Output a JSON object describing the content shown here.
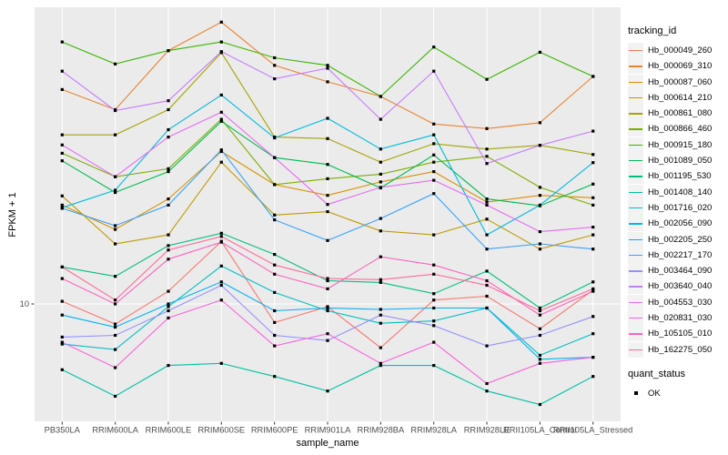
{
  "chart_data": {
    "type": "line",
    "title": "",
    "xlabel": "sample_name",
    "ylabel": "FPKM + 1",
    "y_scale": "log10",
    "y_ticks": [
      {
        "value": 10,
        "label": "10"
      }
    ],
    "grid": true,
    "legend_position": "right",
    "panel_bg": "#EBEBEB",
    "grid_color": "#FFFFFF",
    "key_bg": "#F2F2F2",
    "tick_text_color": "#4D4D4D",
    "point_color": "#000000",
    "categories": [
      "PB350LA",
      "RRIM600LA",
      "RRIM600LE",
      "RRIM600SE",
      "RRIM600PE",
      "RRIM901LA",
      "RRIM928BA",
      "RRIM928LA",
      "RRIM928LE",
      "RRII105LA_Control",
      "RRII105LA_Stressed"
    ],
    "series": [
      {
        "name": "Hb_000049_260",
        "color": "#F8766D",
        "values": [
          10.2,
          8.6,
          11.0,
          16.0,
          8.7,
          9.8,
          7.2,
          10.3,
          10.6,
          8.3,
          11.1
        ]
      },
      {
        "name": "Hb_000069_310",
        "color": "#EA8331",
        "values": [
          50,
          43,
          67,
          83,
          60,
          53,
          47.5,
          38.6,
          37.3,
          39,
          55.2
        ]
      },
      {
        "name": "Hb_000087_060",
        "color": "#D89000",
        "values": [
          21,
          17.5,
          22,
          31.4,
          24.5,
          22.6,
          25,
          27,
          21.5,
          22.6,
          22.2
        ]
      },
      {
        "name": "Hb_000614_210",
        "color": "#C09B00",
        "values": [
          22.5,
          15.7,
          16.8,
          29,
          19.5,
          20,
          17.3,
          16.8,
          18.9,
          15.1,
          16.8
        ]
      },
      {
        "name": "Hb_000861_080",
        "color": "#A3A500",
        "values": [
          35.6,
          35.6,
          43,
          66,
          35,
          34.6,
          29,
          33.3,
          32,
          32.9,
          30.7
        ]
      },
      {
        "name": "Hb_000866_460",
        "color": "#7CAE00",
        "values": [
          31,
          26,
          27.6,
          40,
          24.5,
          25.6,
          26.5,
          29,
          30.3,
          24,
          21
        ]
      },
      {
        "name": "Hb_000915_180",
        "color": "#39B600",
        "values": [
          71.5,
          60.6,
          67,
          71.5,
          63.5,
          60,
          47.5,
          68.8,
          54,
          66.2,
          55.2
        ]
      },
      {
        "name": "Hb_001089_050",
        "color": "#00BB4E",
        "values": [
          29.3,
          23.1,
          27,
          39.4,
          30,
          28.5,
          23.9,
          30.6,
          22,
          20.9,
          24.6
        ]
      },
      {
        "name": "Hb_001195_530",
        "color": "#00BF7D",
        "values": [
          13.2,
          12.3,
          15.5,
          17,
          14.5,
          11.9,
          11.75,
          10.8,
          12.8,
          9.7,
          11.8
        ]
      },
      {
        "name": "Hb_001408_140",
        "color": "#00C1A3",
        "values": [
          6.1,
          5.0,
          6.3,
          6.4,
          5.8,
          5.2,
          6.3,
          6.3,
          5.2,
          4.7,
          5.8
        ]
      },
      {
        "name": "Hb_001716_020",
        "color": "#00BFC4",
        "values": [
          7.4,
          7.1,
          9.8,
          13.3,
          10.9,
          9.5,
          8.65,
          8.8,
          9.7,
          6.8,
          8.0
        ]
      },
      {
        "name": "Hb_002056_090",
        "color": "#00BAE0",
        "values": [
          20.6,
          23.5,
          37,
          48,
          34.8,
          40.3,
          32,
          35.6,
          16.8,
          21,
          28.9
        ]
      },
      {
        "name": "Hb_002205_250",
        "color": "#00B0F6",
        "values": [
          9.2,
          8.4,
          10,
          11.8,
          9.5,
          9.7,
          9.6,
          9.7,
          9.7,
          6.6,
          6.7
        ]
      },
      {
        "name": "Hb_002217_170",
        "color": "#35A2FF",
        "values": [
          20.5,
          18,
          21,
          31.8,
          18.8,
          16.1,
          19,
          22.9,
          15.1,
          15.7,
          15.1
        ]
      },
      {
        "name": "Hb_003464_090",
        "color": "#9590FF",
        "values": [
          7.8,
          7.9,
          9.5,
          11.5,
          7.9,
          7.6,
          9.2,
          8.5,
          7.3,
          7.9,
          9.1
        ]
      },
      {
        "name": "Hb_003640_040",
        "color": "#C77CFF",
        "values": [
          57.4,
          42.7,
          46,
          66.5,
          54.2,
          58.7,
          40,
          57.4,
          28.7,
          32.9,
          36.6
        ]
      },
      {
        "name": "Hb_004553_030",
        "color": "#E76BF3",
        "values": [
          33,
          26,
          35,
          42.2,
          30,
          21.1,
          24,
          25.3,
          21,
          17.2,
          17.8
        ]
      },
      {
        "name": "Hb_020831_030",
        "color": "#FA62DB",
        "values": [
          7.5,
          6.2,
          9,
          10.3,
          7.3,
          8.0,
          6.4,
          7.5,
          5.5,
          6.4,
          6.7
        ]
      },
      {
        "name": "Hb_105105_010",
        "color": "#FF62BC",
        "values": [
          12.1,
          10.0,
          14,
          15.9,
          12.5,
          11.2,
          14.25,
          13.4,
          11.9,
          9.2,
          11.0
        ]
      },
      {
        "name": "Hb_162275_050",
        "color": "#FF6A98",
        "values": [
          13.2,
          10.3,
          15,
          16.6,
          13.4,
          12.1,
          12,
          12.5,
          11.5,
          9.5,
          11.2
        ]
      }
    ]
  },
  "legend": {
    "tracking_title": "tracking_id",
    "quant_title": "quant_status",
    "quant_ok_label": "OK"
  }
}
